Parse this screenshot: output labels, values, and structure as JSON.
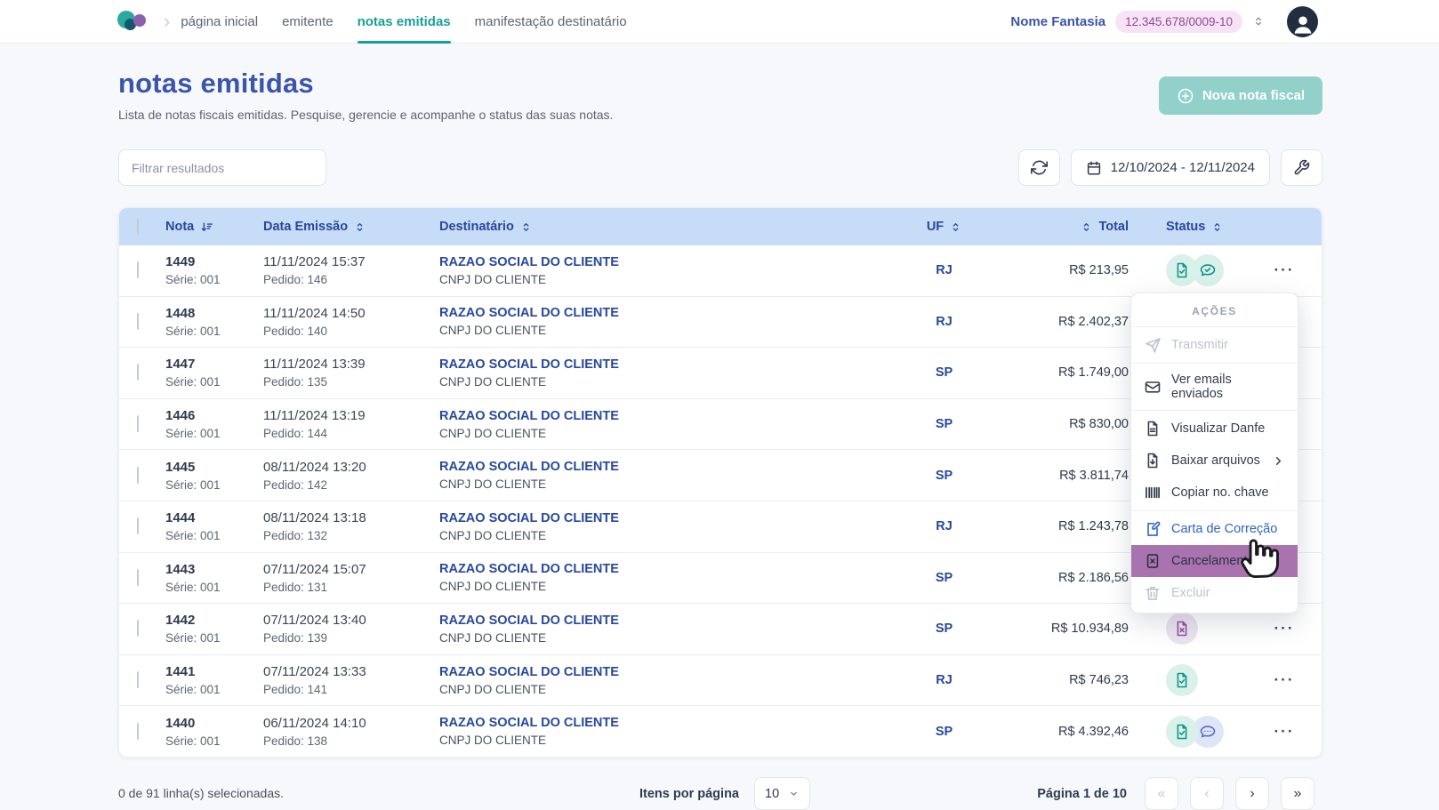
{
  "nav": {
    "logo": "cloud-logo",
    "tabs": [
      {
        "name": "pagina-inicial",
        "label": "página inicial",
        "active": false
      },
      {
        "name": "emitente",
        "label": "emitente",
        "active": false
      },
      {
        "name": "notas-emitidas",
        "label": "notas emitidas",
        "active": true
      },
      {
        "name": "manifestacao-destinatario",
        "label": "manifestação destinatário",
        "active": false
      }
    ],
    "company_name": "Nome Fantasia",
    "company_cnpj": "12.345.678/0009-10"
  },
  "page": {
    "title": "notas emitidas",
    "subtitle": "Lista de notas fiscais emitidas. Pesquise, gerencie e acompanhe o status das suas notas.",
    "new_invoice_button": "Nova nota fiscal"
  },
  "toolbar": {
    "filter_placeholder": "Filtrar resultados",
    "date_range": "12/10/2024 - 12/11/2024"
  },
  "table": {
    "headers": {
      "nota": "Nota",
      "data_emissao": "Data Emissão",
      "destinatario": "Destinatário",
      "uf": "UF",
      "total": "Total",
      "status": "Status"
    },
    "rows": [
      {
        "nota": "1449",
        "serie": "Série: 001",
        "data": "11/11/2024 15:37",
        "pedido": "Pedido: 146",
        "destinatario": "RAZAO SOCIAL DO CLIENTE",
        "cnpj": "CNPJ DO CLIENTE",
        "uf": "RJ",
        "total": "R$ 213,95",
        "status": [
          "doc-check",
          "chat-check"
        ]
      },
      {
        "nota": "1448",
        "serie": "Série: 001",
        "data": "11/11/2024 14:50",
        "pedido": "Pedido: 140",
        "destinatario": "RAZAO SOCIAL DO CLIENTE",
        "cnpj": "CNPJ DO CLIENTE",
        "uf": "RJ",
        "total": "R$ 2.402,37",
        "status": []
      },
      {
        "nota": "1447",
        "serie": "Série: 001",
        "data": "11/11/2024 13:39",
        "pedido": "Pedido: 135",
        "destinatario": "RAZAO SOCIAL DO CLIENTE",
        "cnpj": "CNPJ DO CLIENTE",
        "uf": "SP",
        "total": "R$ 1.749,00",
        "status": []
      },
      {
        "nota": "1446",
        "serie": "Série: 001",
        "data": "11/11/2024 13:19",
        "pedido": "Pedido: 144",
        "destinatario": "RAZAO SOCIAL DO CLIENTE",
        "cnpj": "CNPJ DO CLIENTE",
        "uf": "SP",
        "total": "R$ 830,00",
        "status": []
      },
      {
        "nota": "1445",
        "serie": "Série: 001",
        "data": "08/11/2024 13:20",
        "pedido": "Pedido: 142",
        "destinatario": "RAZAO SOCIAL DO CLIENTE",
        "cnpj": "CNPJ DO CLIENTE",
        "uf": "SP",
        "total": "R$ 3.811,74",
        "status": []
      },
      {
        "nota": "1444",
        "serie": "Série: 001",
        "data": "08/11/2024 13:18",
        "pedido": "Pedido: 132",
        "destinatario": "RAZAO SOCIAL DO CLIENTE",
        "cnpj": "CNPJ DO CLIENTE",
        "uf": "RJ",
        "total": "R$ 1.243,78",
        "status": []
      },
      {
        "nota": "1443",
        "serie": "Série: 001",
        "data": "07/11/2024 15:07",
        "pedido": "Pedido: 131",
        "destinatario": "RAZAO SOCIAL DO CLIENTE",
        "cnpj": "CNPJ DO CLIENTE",
        "uf": "SP",
        "total": "R$ 2.186,56",
        "status": []
      },
      {
        "nota": "1442",
        "serie": "Série: 001",
        "data": "07/11/2024 13:40",
        "pedido": "Pedido: 139",
        "destinatario": "RAZAO SOCIAL DO CLIENTE",
        "cnpj": "CNPJ DO CLIENTE",
        "uf": "SP",
        "total": "R$ 10.934,89",
        "status": [
          "doc-x"
        ]
      },
      {
        "nota": "1441",
        "serie": "Série: 001",
        "data": "07/11/2024 13:33",
        "pedido": "Pedido: 141",
        "destinatario": "RAZAO SOCIAL DO CLIENTE",
        "cnpj": "CNPJ DO CLIENTE",
        "uf": "RJ",
        "total": "R$ 746,23",
        "status": [
          "doc-check"
        ]
      },
      {
        "nota": "1440",
        "serie": "Série: 001",
        "data": "06/11/2024 14:10",
        "pedido": "Pedido: 138",
        "destinatario": "RAZAO SOCIAL DO CLIENTE",
        "cnpj": "CNPJ DO CLIENTE",
        "uf": "SP",
        "total": "R$ 4.392,46",
        "status": [
          "doc-check",
          "chat-dots"
        ]
      }
    ]
  },
  "actions_menu": {
    "title": "AÇÕES",
    "items": [
      {
        "name": "transmitir",
        "label": "Transmitir",
        "icon": "paper-plane-icon",
        "disabled": true,
        "divider_after": true
      },
      {
        "name": "ver-emails-enviados",
        "label": "Ver emails enviados",
        "icon": "mail-icon",
        "divider_after": true
      },
      {
        "name": "visualizar-danfe",
        "label": "Visualizar Danfe",
        "icon": "document-icon"
      },
      {
        "name": "baixar-arquivos",
        "label": "Baixar arquivos",
        "icon": "download-icon",
        "submenu": true
      },
      {
        "name": "copiar-no-chave",
        "label": "Copiar no. chave",
        "icon": "barcode-icon",
        "divider_after": true
      },
      {
        "name": "carta-de-correcao",
        "label": "Carta de Correção",
        "icon": "doc-edit-icon",
        "accent": true
      },
      {
        "name": "cancelamento",
        "label": "Cancelamento",
        "icon": "doc-x-icon",
        "highlighted": true
      },
      {
        "name": "excluir",
        "label": "Excluir",
        "icon": "trash-icon",
        "disabled": true
      }
    ]
  },
  "footer": {
    "selection_text": "0 de 91 linha(s) selecionadas.",
    "items_per_page_label": "Itens por página",
    "items_per_page_value": "10",
    "page_label": "Página 1 de 10"
  },
  "colors": {
    "accent_teal": "#18a098",
    "primary_blue": "#3a55ab",
    "table_header_bg": "#c7dcf7",
    "link_blue": "#27489c",
    "status_ok": "#0e9488",
    "status_canceled": "#94519d",
    "status_chat_blue": "#5b6cc0",
    "menu_highlight": "#a873ae",
    "new_button_bg": "#92d1ca",
    "cnpj_pill_bg": "#f8e2f6"
  }
}
